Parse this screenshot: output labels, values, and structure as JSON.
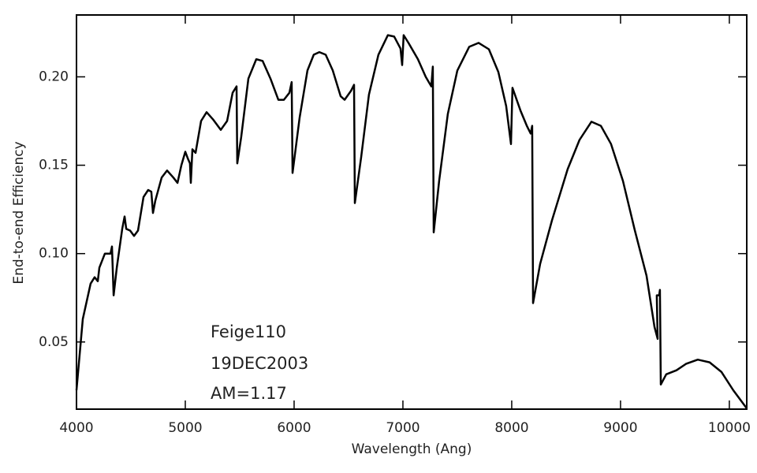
{
  "chart_data": {
    "type": "line",
    "x_label": "Wavelength (Ang)",
    "y_label": "End-to-end Efficiency",
    "annotations": [
      "Feige110",
      "19DEC2003",
      "AM=1.17"
    ],
    "color": "#000000",
    "xlim": [
      4000,
      10160
    ],
    "ylim": [
      0.012,
      0.235
    ],
    "xticks": [
      4000,
      5000,
      6000,
      7000,
      8000,
      9000,
      10000
    ],
    "yticks": [
      0.05,
      {
        "value": 0.1,
        "label": "0.10"
      },
      0.15,
      {
        "value": 0.2,
        "label": "0.20"
      }
    ],
    "x": [
      4000,
      4058,
      4130,
      4167,
      4196,
      4210,
      4261,
      4312,
      4326,
      4341,
      4370,
      4420,
      4442,
      4457,
      4493,
      4529,
      4565,
      4616,
      4659,
      4688,
      4703,
      4725,
      4783,
      4833,
      4891,
      4928,
      4964,
      5000,
      5022,
      5043,
      5051,
      5065,
      5094,
      5145,
      5196,
      5254,
      5326,
      5384,
      5435,
      5471,
      5478,
      5514,
      5580,
      5652,
      5710,
      5783,
      5855,
      5906,
      5957,
      5978,
      5986,
      6051,
      6123,
      6181,
      6232,
      6290,
      6355,
      6428,
      6464,
      6522,
      6551,
      6558,
      6616,
      6688,
      6775,
      6862,
      6920,
      6978,
      6993,
      7007,
      7051,
      7138,
      7210,
      7261,
      7275,
      7283,
      7333,
      7413,
      7500,
      7609,
      7696,
      7790,
      7877,
      7949,
      7993,
      8007,
      8080,
      8138,
      8174,
      8188,
      8196,
      8261,
      8370,
      8514,
      8623,
      8732,
      8819,
      8913,
      9022,
      9130,
      9239,
      9312,
      9341,
      9333,
      9355,
      9362,
      9370,
      9420,
      9514,
      9601,
      9710,
      9819,
      9928,
      10036,
      10159
    ],
    "values": [
      0.0227,
      0.063,
      0.083,
      0.0866,
      0.0844,
      0.092,
      0.1,
      0.1,
      0.104,
      0.0764,
      0.092,
      0.114,
      0.121,
      0.114,
      0.113,
      0.11,
      0.113,
      0.132,
      0.136,
      0.135,
      0.123,
      0.13,
      0.143,
      0.147,
      0.143,
      0.14,
      0.15,
      0.1576,
      0.154,
      0.151,
      0.14,
      0.159,
      0.157,
      0.175,
      0.18,
      0.176,
      0.17,
      0.175,
      0.191,
      0.1946,
      0.151,
      0.166,
      0.199,
      0.21,
      0.209,
      0.199,
      0.187,
      0.187,
      0.191,
      0.197,
      0.1456,
      0.177,
      0.2036,
      0.2125,
      0.214,
      0.2125,
      0.2036,
      0.189,
      0.187,
      0.192,
      0.1955,
      0.1286,
      0.1545,
      0.19,
      0.2125,
      0.2236,
      0.2228,
      0.216,
      0.2067,
      0.2236,
      0.2192,
      0.21,
      0.2,
      0.1946,
      0.2058,
      0.112,
      0.1411,
      0.179,
      0.2036,
      0.217,
      0.2192,
      0.2156,
      0.2027,
      0.1835,
      0.162,
      0.1938,
      0.181,
      0.1724,
      0.1679,
      0.1723,
      0.072,
      0.0942,
      0.1188,
      0.1478,
      0.1643,
      0.1746,
      0.1723,
      0.162,
      0.1411,
      0.1134,
      0.0875,
      0.0585,
      0.0518,
      0.0764,
      0.0764,
      0.0795,
      0.0259,
      0.0317,
      0.034,
      0.0376,
      0.04,
      0.0385,
      0.033,
      0.0227,
      0.0125
    ]
  }
}
